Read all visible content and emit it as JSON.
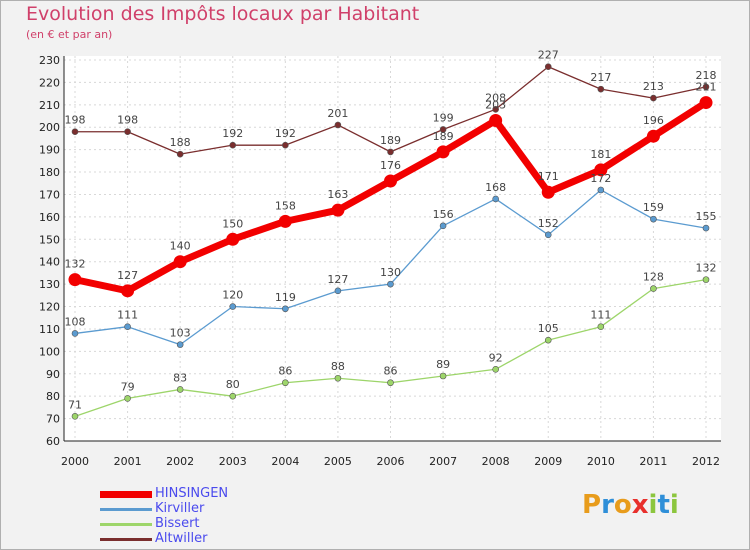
{
  "title": "Evolution des Impôts locaux par Habitant",
  "subtitle": "(en € et par an)",
  "brand": {
    "letters": [
      "P",
      "r",
      "o",
      "x",
      "i",
      "t",
      "i"
    ],
    "colors": [
      "#e89c1c",
      "#2f8fd8",
      "#e89c1c",
      "#e8302c",
      "#8cc63e",
      "#2f8fd8",
      "#8cc63e"
    ]
  },
  "chart_data": {
    "type": "line",
    "title": "Evolution des Impôts locaux par Habitant",
    "subtitle": "(en € et par an)",
    "xlabel": "",
    "ylabel": "",
    "ylim": [
      60,
      230
    ],
    "ystep": 10,
    "grid": true,
    "legend": "bottom-left",
    "x": [
      "2000",
      "2001",
      "2002",
      "2003",
      "2004",
      "2005",
      "2006",
      "2007",
      "2008",
      "2009",
      "2010",
      "2011",
      "2012"
    ],
    "series": [
      {
        "name": "HINSINGEN",
        "color": "#f20000",
        "width": 7,
        "marker": 6.5,
        "labelColor": "#444444",
        "values": [
          132,
          127,
          140,
          150,
          158,
          163,
          176,
          189,
          203,
          171,
          181,
          196,
          211
        ],
        "labelPos": [
          "above",
          "above",
          "above",
          "above",
          "above",
          "above",
          "above",
          "above",
          "above",
          "above",
          "above",
          "above",
          "above"
        ]
      },
      {
        "name": "Kirviller",
        "color": "#5b9bd0",
        "width": 1.3,
        "marker": 3,
        "labelColor": "#444444",
        "values": [
          108,
          111,
          103,
          120,
          119,
          127,
          130,
          156,
          168,
          152,
          172,
          159,
          155
        ],
        "labelPos": [
          "above",
          "above",
          "above",
          "above",
          "above",
          "above",
          "above",
          "above",
          "above",
          "above",
          "above",
          "above",
          "above"
        ]
      },
      {
        "name": "Bissert",
        "color": "#9dd56a",
        "width": 1.3,
        "marker": 3,
        "labelColor": "#444444",
        "values": [
          71,
          79,
          83,
          80,
          86,
          88,
          86,
          89,
          92,
          105,
          111,
          128,
          132
        ],
        "labelPos": [
          "above",
          "above",
          "above",
          "above",
          "above",
          "above",
          "above",
          "above",
          "above",
          "above",
          "above",
          "above",
          "above"
        ]
      },
      {
        "name": "Altwiller",
        "color": "#7a2e2e",
        "width": 1.3,
        "marker": 3,
        "labelColor": "#444444",
        "values": [
          198,
          198,
          188,
          192,
          192,
          201,
          189,
          199,
          208,
          227,
          217,
          213,
          218
        ],
        "labelPos": [
          "above",
          "above",
          "above",
          "above",
          "above",
          "above",
          "above",
          "above",
          "above",
          "above",
          "above",
          "above",
          "above"
        ]
      }
    ]
  }
}
